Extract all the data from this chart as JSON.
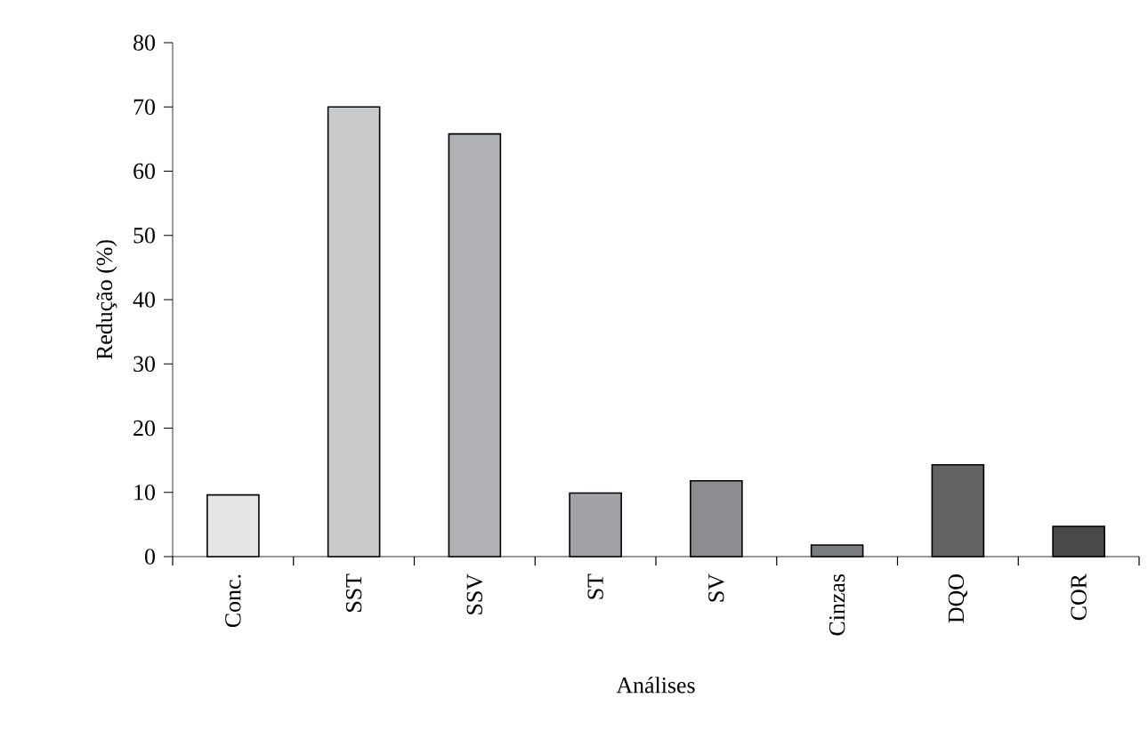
{
  "chart_data": {
    "type": "bar",
    "xlabel": "Análises",
    "ylabel": "Redução (%)",
    "categories": [
      "Conc.",
      "SST",
      "SSV",
      "ST",
      "SV",
      "Cinzas",
      "DQO",
      "COR"
    ],
    "values": [
      9.6,
      70,
      65.8,
      9.9,
      11.8,
      1.8,
      14.3,
      4.7
    ],
    "colors": [
      "#e5e5e6",
      "#c8c9cb",
      "#b0b1b4",
      "#a1a2a5",
      "#8c8d90",
      "#7b7c7f",
      "#636365",
      "#48494b"
    ],
    "ylim": [
      0,
      80
    ],
    "yticks": [
      0,
      10,
      20,
      30,
      40,
      50,
      60,
      70,
      80
    ]
  }
}
